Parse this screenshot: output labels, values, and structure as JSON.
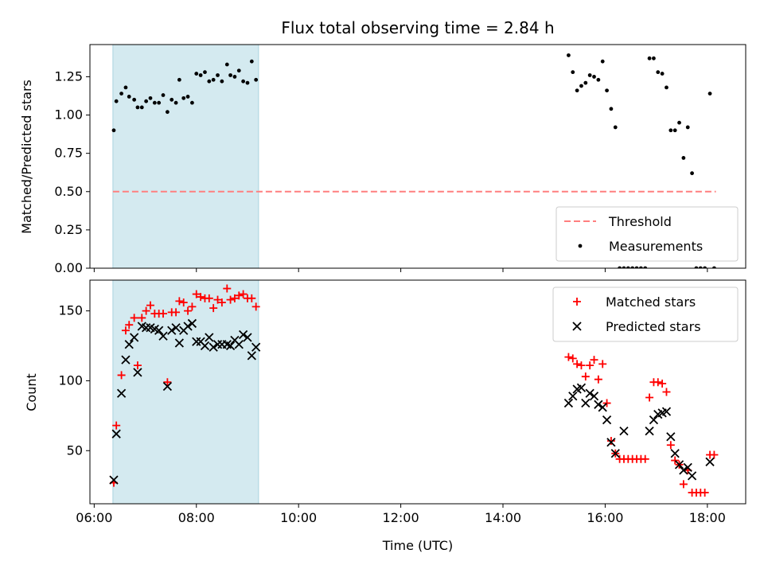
{
  "chart_data": [
    {
      "type": "scatter",
      "title": "Flux total observing time = 2.84 h",
      "xlabel": "",
      "ylabel": "Matched/Predicted stars",
      "xlim": [
        "05:55",
        "18:45"
      ],
      "ylim": [
        0,
        1.46
      ],
      "yticks": [
        "0.00",
        "0.25",
        "0.50",
        "0.75",
        "1.00",
        "1.25"
      ],
      "ytick_values": [
        0,
        0.25,
        0.5,
        0.75,
        1.0,
        1.25
      ],
      "xticks": [
        "06:00",
        "08:00",
        "10:00",
        "12:00",
        "14:00",
        "16:00",
        "18:00"
      ],
      "shaded_span": [
        "06:22",
        "09:13"
      ],
      "shade_color": "#d4eaf0",
      "threshold": {
        "name": "Threshold",
        "value": 0.5,
        "x_range": [
          "06:22",
          "18:10"
        ],
        "color": "#ff7f7f"
      },
      "series": [
        {
          "name": "Measurements",
          "marker": "dot",
          "color": "#000000",
          "points": [
            [
              "06:23",
              0.9
            ],
            [
              "06:26",
              1.09
            ],
            [
              "06:32",
              1.14
            ],
            [
              "06:37",
              1.18
            ],
            [
              "06:41",
              1.12
            ],
            [
              "06:47",
              1.1
            ],
            [
              "06:51",
              1.05
            ],
            [
              "06:56",
              1.05
            ],
            [
              "07:01",
              1.09
            ],
            [
              "07:06",
              1.11
            ],
            [
              "07:11",
              1.08
            ],
            [
              "07:16",
              1.08
            ],
            [
              "07:21",
              1.13
            ],
            [
              "07:26",
              1.02
            ],
            [
              "07:31",
              1.1
            ],
            [
              "07:36",
              1.08
            ],
            [
              "07:40",
              1.23
            ],
            [
              "07:45",
              1.11
            ],
            [
              "07:50",
              1.12
            ],
            [
              "07:55",
              1.08
            ],
            [
              "08:00",
              1.27
            ],
            [
              "08:05",
              1.26
            ],
            [
              "08:10",
              1.28
            ],
            [
              "08:15",
              1.22
            ],
            [
              "08:20",
              1.23
            ],
            [
              "08:25",
              1.26
            ],
            [
              "08:30",
              1.22
            ],
            [
              "08:36",
              1.33
            ],
            [
              "08:40",
              1.26
            ],
            [
              "08:45",
              1.25
            ],
            [
              "08:50",
              1.29
            ],
            [
              "08:55",
              1.22
            ],
            [
              "09:00",
              1.21
            ],
            [
              "09:05",
              1.35
            ],
            [
              "09:10",
              1.23
            ],
            [
              "15:17",
              1.39
            ],
            [
              "15:22",
              1.28
            ],
            [
              "15:27",
              1.16
            ],
            [
              "15:32",
              1.19
            ],
            [
              "15:37",
              1.21
            ],
            [
              "15:42",
              1.26
            ],
            [
              "15:47",
              1.25
            ],
            [
              "15:52",
              1.23
            ],
            [
              "15:57",
              1.35
            ],
            [
              "16:02",
              1.16
            ],
            [
              "16:07",
              1.04
            ],
            [
              "16:12",
              0.92
            ],
            [
              "16:17",
              0.0
            ],
            [
              "16:22",
              0.0
            ],
            [
              "16:27",
              0.0
            ],
            [
              "16:32",
              0.0
            ],
            [
              "16:37",
              0.0
            ],
            [
              "16:42",
              0.0
            ],
            [
              "16:47",
              0.0
            ],
            [
              "16:52",
              1.37
            ],
            [
              "16:57",
              1.37
            ],
            [
              "17:02",
              1.28
            ],
            [
              "17:07",
              1.27
            ],
            [
              "17:12",
              1.18
            ],
            [
              "17:17",
              0.9
            ],
            [
              "17:22",
              0.9
            ],
            [
              "17:27",
              0.95
            ],
            [
              "17:32",
              0.72
            ],
            [
              "17:37",
              0.92
            ],
            [
              "17:42",
              0.62
            ],
            [
              "17:47",
              0.0
            ],
            [
              "17:52",
              0.0
            ],
            [
              "17:57",
              0.0
            ],
            [
              "18:03",
              1.14
            ],
            [
              "18:08",
              0.0
            ]
          ]
        }
      ],
      "legend": {
        "placement": "bottom-right",
        "entries": [
          "Threshold",
          "Measurements"
        ]
      }
    },
    {
      "type": "scatter",
      "title": "",
      "xlabel": "Time (UTC)",
      "ylabel": "Count",
      "xlim": [
        "05:55",
        "18:45"
      ],
      "ylim": [
        12,
        172
      ],
      "yticks": [
        "50",
        "100",
        "150"
      ],
      "ytick_values": [
        50,
        100,
        150
      ],
      "xticks": [
        "06:00",
        "08:00",
        "10:00",
        "12:00",
        "14:00",
        "16:00",
        "18:00"
      ],
      "shaded_span": [
        "06:22",
        "09:13"
      ],
      "shade_color": "#d4eaf0",
      "series": [
        {
          "name": "Matched stars",
          "marker": "plus",
          "color": "#ff0000",
          "points": [
            [
              "06:23",
              27
            ],
            [
              "06:26",
              68
            ],
            [
              "06:32",
              104
            ],
            [
              "06:37",
              136
            ],
            [
              "06:41",
              140
            ],
            [
              "06:47",
              145
            ],
            [
              "06:51",
              111
            ],
            [
              "06:56",
              145
            ],
            [
              "07:01",
              150
            ],
            [
              "07:06",
              154
            ],
            [
              "07:11",
              148
            ],
            [
              "07:16",
              148
            ],
            [
              "07:21",
              148
            ],
            [
              "07:26",
              99
            ],
            [
              "07:31",
              149
            ],
            [
              "07:36",
              149
            ],
            [
              "07:40",
              157
            ],
            [
              "07:45",
              156
            ],
            [
              "07:50",
              150
            ],
            [
              "07:55",
              153
            ],
            [
              "08:00",
              162
            ],
            [
              "08:05",
              160
            ],
            [
              "08:10",
              159
            ],
            [
              "08:15",
              159
            ],
            [
              "08:20",
              152
            ],
            [
              "08:25",
              158
            ],
            [
              "08:30",
              156
            ],
            [
              "08:36",
              166
            ],
            [
              "08:40",
              158
            ],
            [
              "08:45",
              159
            ],
            [
              "08:50",
              161
            ],
            [
              "08:55",
              162
            ],
            [
              "09:00",
              159
            ],
            [
              "09:05",
              159
            ],
            [
              "09:10",
              153
            ],
            [
              "15:17",
              117
            ],
            [
              "15:22",
              116
            ],
            [
              "15:27",
              112
            ],
            [
              "15:32",
              111
            ],
            [
              "15:37",
              103
            ],
            [
              "15:42",
              111
            ],
            [
              "15:47",
              115
            ],
            [
              "15:52",
              101
            ],
            [
              "15:57",
              112
            ],
            [
              "16:02",
              84
            ],
            [
              "16:07",
              57
            ],
            [
              "16:12",
              48
            ],
            [
              "16:17",
              44
            ],
            [
              "16:22",
              44
            ],
            [
              "16:27",
              44
            ],
            [
              "16:32",
              44
            ],
            [
              "16:37",
              44
            ],
            [
              "16:42",
              44
            ],
            [
              "16:47",
              44
            ],
            [
              "16:52",
              88
            ],
            [
              "16:57",
              99
            ],
            [
              "17:02",
              99
            ],
            [
              "17:07",
              98
            ],
            [
              "17:12",
              92
            ],
            [
              "17:17",
              54
            ],
            [
              "17:22",
              43
            ],
            [
              "17:27",
              40
            ],
            [
              "17:32",
              26
            ],
            [
              "17:37",
              36
            ],
            [
              "17:42",
              20
            ],
            [
              "17:47",
              20
            ],
            [
              "17:52",
              20
            ],
            [
              "17:57",
              20
            ],
            [
              "18:03",
              47
            ],
            [
              "18:08",
              47
            ]
          ]
        },
        {
          "name": "Predicted stars",
          "marker": "x",
          "color": "#000000",
          "points": [
            [
              "06:23",
              29
            ],
            [
              "06:26",
              62
            ],
            [
              "06:32",
              91
            ],
            [
              "06:37",
              115
            ],
            [
              "06:41",
              126
            ],
            [
              "06:47",
              131
            ],
            [
              "06:51",
              106
            ],
            [
              "06:56",
              139
            ],
            [
              "07:01",
              138
            ],
            [
              "07:06",
              138
            ],
            [
              "07:11",
              137
            ],
            [
              "07:16",
              136
            ],
            [
              "07:21",
              132
            ],
            [
              "07:26",
              96
            ],
            [
              "07:31",
              136
            ],
            [
              "07:36",
              138
            ],
            [
              "07:40",
              127
            ],
            [
              "07:45",
              136
            ],
            [
              "07:50",
              139
            ],
            [
              "07:55",
              141
            ],
            [
              "08:00",
              128
            ],
            [
              "08:05",
              128
            ],
            [
              "08:10",
              125
            ],
            [
              "08:15",
              131
            ],
            [
              "08:20",
              124
            ],
            [
              "08:25",
              126
            ],
            [
              "08:30",
              126
            ],
            [
              "08:36",
              126
            ],
            [
              "08:40",
              125
            ],
            [
              "08:45",
              129
            ],
            [
              "08:50",
              126
            ],
            [
              "08:55",
              133
            ],
            [
              "09:00",
              131
            ],
            [
              "09:05",
              118
            ],
            [
              "09:10",
              124
            ],
            [
              "15:17",
              84
            ],
            [
              "15:22",
              89
            ],
            [
              "15:27",
              94
            ],
            [
              "15:32",
              95
            ],
            [
              "15:37",
              84
            ],
            [
              "15:42",
              91
            ],
            [
              "15:47",
              89
            ],
            [
              "15:52",
              83
            ],
            [
              "15:57",
              81
            ],
            [
              "16:02",
              72
            ],
            [
              "16:07",
              56
            ],
            [
              "16:12",
              48
            ],
            [
              "16:22",
              64
            ],
            [
              "16:52",
              64
            ],
            [
              "16:57",
              72
            ],
            [
              "17:02",
              76
            ],
            [
              "17:07",
              77
            ],
            [
              "17:12",
              78
            ],
            [
              "17:17",
              60
            ],
            [
              "17:22",
              48
            ],
            [
              "17:27",
              40
            ],
            [
              "17:32",
              36
            ],
            [
              "17:37",
              38
            ],
            [
              "17:42",
              32
            ],
            [
              "18:03",
              42
            ]
          ]
        }
      ],
      "legend": {
        "placement": "top-right",
        "entries": [
          "Matched stars",
          "Predicted stars"
        ]
      }
    }
  ]
}
